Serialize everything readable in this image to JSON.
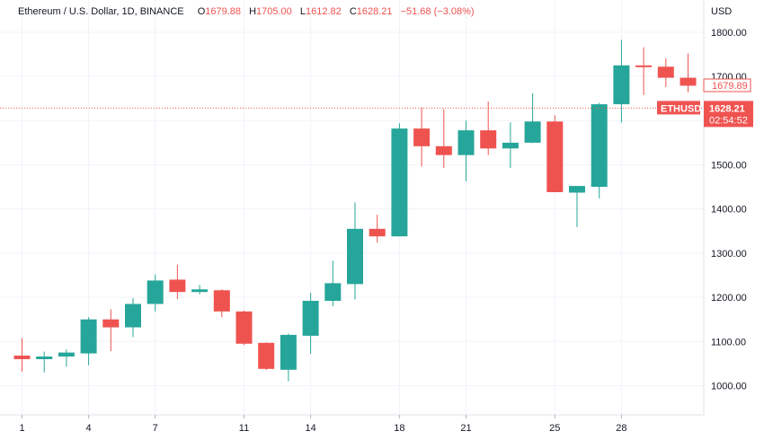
{
  "header": {
    "symbol_desc": "Ethereum / U.S. Dollar, 1D, BINANCE",
    "o_label": "O",
    "o_value": "1679.88",
    "h_label": "H",
    "h_value": "1705.00",
    "l_label": "L",
    "l_value": "1612.82",
    "c_label": "C",
    "c_value": "1628.21",
    "change": "−51.68 (−3.08%)"
  },
  "colors": {
    "up": "#26a69a",
    "down": "#ef5350",
    "grid": "#f0f3fa",
    "axis": "#e0e3eb"
  },
  "chart_data": {
    "type": "candlestick",
    "currency_label": "USD",
    "ylim": [
      950,
      1850
    ],
    "y_ticks": [
      1000,
      1100,
      1200,
      1300,
      1400,
      1500,
      1600,
      1700,
      1800
    ],
    "y_tick_labels": [
      "1000.00",
      "1100.00",
      "1200.00",
      "1300.00",
      "1400.00",
      "1500.00",
      "1600.00",
      "1700.00",
      "1800.00"
    ],
    "x_ticks": [
      1,
      4,
      7,
      11,
      14,
      18,
      21,
      25,
      28
    ],
    "x_tick_labels": [
      "1",
      "4",
      "7",
      "11",
      "14",
      "18",
      "21",
      "25",
      "28"
    ],
    "candles": [
      {
        "day": 1,
        "o": 1068,
        "h": 1108,
        "l": 1032,
        "c": 1060
      },
      {
        "day": 2,
        "o": 1060,
        "h": 1077,
        "l": 1030,
        "c": 1066
      },
      {
        "day": 3,
        "o": 1066,
        "h": 1082,
        "l": 1043,
        "c": 1075
      },
      {
        "day": 4,
        "o": 1073,
        "h": 1155,
        "l": 1046,
        "c": 1150
      },
      {
        "day": 5,
        "o": 1150,
        "h": 1173,
        "l": 1078,
        "c": 1132
      },
      {
        "day": 6,
        "o": 1132,
        "h": 1198,
        "l": 1110,
        "c": 1185
      },
      {
        "day": 7,
        "o": 1185,
        "h": 1252,
        "l": 1168,
        "c": 1238
      },
      {
        "day": 8,
        "o": 1240,
        "h": 1274,
        "l": 1196,
        "c": 1212
      },
      {
        "day": 9,
        "o": 1212,
        "h": 1228,
        "l": 1207,
        "c": 1218
      },
      {
        "day": 10,
        "o": 1216,
        "h": 1218,
        "l": 1155,
        "c": 1168
      },
      {
        "day": 11,
        "o": 1168,
        "h": 1170,
        "l": 1092,
        "c": 1095
      },
      {
        "day": 12,
        "o": 1097,
        "h": 1098,
        "l": 1035,
        "c": 1038
      },
      {
        "day": 13,
        "o": 1036,
        "h": 1118,
        "l": 1010,
        "c": 1115
      },
      {
        "day": 14,
        "o": 1113,
        "h": 1210,
        "l": 1072,
        "c": 1192
      },
      {
        "day": 15,
        "o": 1192,
        "h": 1283,
        "l": 1180,
        "c": 1232
      },
      {
        "day": 16,
        "o": 1230,
        "h": 1415,
        "l": 1195,
        "c": 1355
      },
      {
        "day": 17,
        "o": 1355,
        "h": 1387,
        "l": 1324,
        "c": 1338
      },
      {
        "day": 18,
        "o": 1338,
        "h": 1594,
        "l": 1338,
        "c": 1582
      },
      {
        "day": 19,
        "o": 1582,
        "h": 1630,
        "l": 1496,
        "c": 1542
      },
      {
        "day": 20,
        "o": 1542,
        "h": 1626,
        "l": 1493,
        "c": 1522
      },
      {
        "day": 21,
        "o": 1522,
        "h": 1600,
        "l": 1463,
        "c": 1578
      },
      {
        "day": 22,
        "o": 1578,
        "h": 1643,
        "l": 1522,
        "c": 1537
      },
      {
        "day": 23,
        "o": 1537,
        "h": 1596,
        "l": 1493,
        "c": 1550
      },
      {
        "day": 24,
        "o": 1550,
        "h": 1662,
        "l": 1549,
        "c": 1598
      },
      {
        "day": 25,
        "o": 1598,
        "h": 1612,
        "l": 1438,
        "c": 1438
      },
      {
        "day": 26,
        "o": 1437,
        "h": 1452,
        "l": 1359,
        "c": 1452
      },
      {
        "day": 27,
        "o": 1450,
        "h": 1640,
        "l": 1424,
        "c": 1637
      },
      {
        "day": 28,
        "o": 1637,
        "h": 1783,
        "l": 1596,
        "c": 1725
      },
      {
        "day": 29,
        "o": 1725,
        "h": 1766,
        "l": 1658,
        "c": 1722
      },
      {
        "day": 30,
        "o": 1722,
        "h": 1741,
        "l": 1676,
        "c": 1697
      },
      {
        "day": 31,
        "o": 1697,
        "h": 1752,
        "l": 1664,
        "c": 1679
      }
    ],
    "last_close_label": "1679.89",
    "current_price": 1628.21,
    "current_price_label": "1628.21",
    "countdown": "02:54:52",
    "ticker_label": "ETHUSD"
  }
}
